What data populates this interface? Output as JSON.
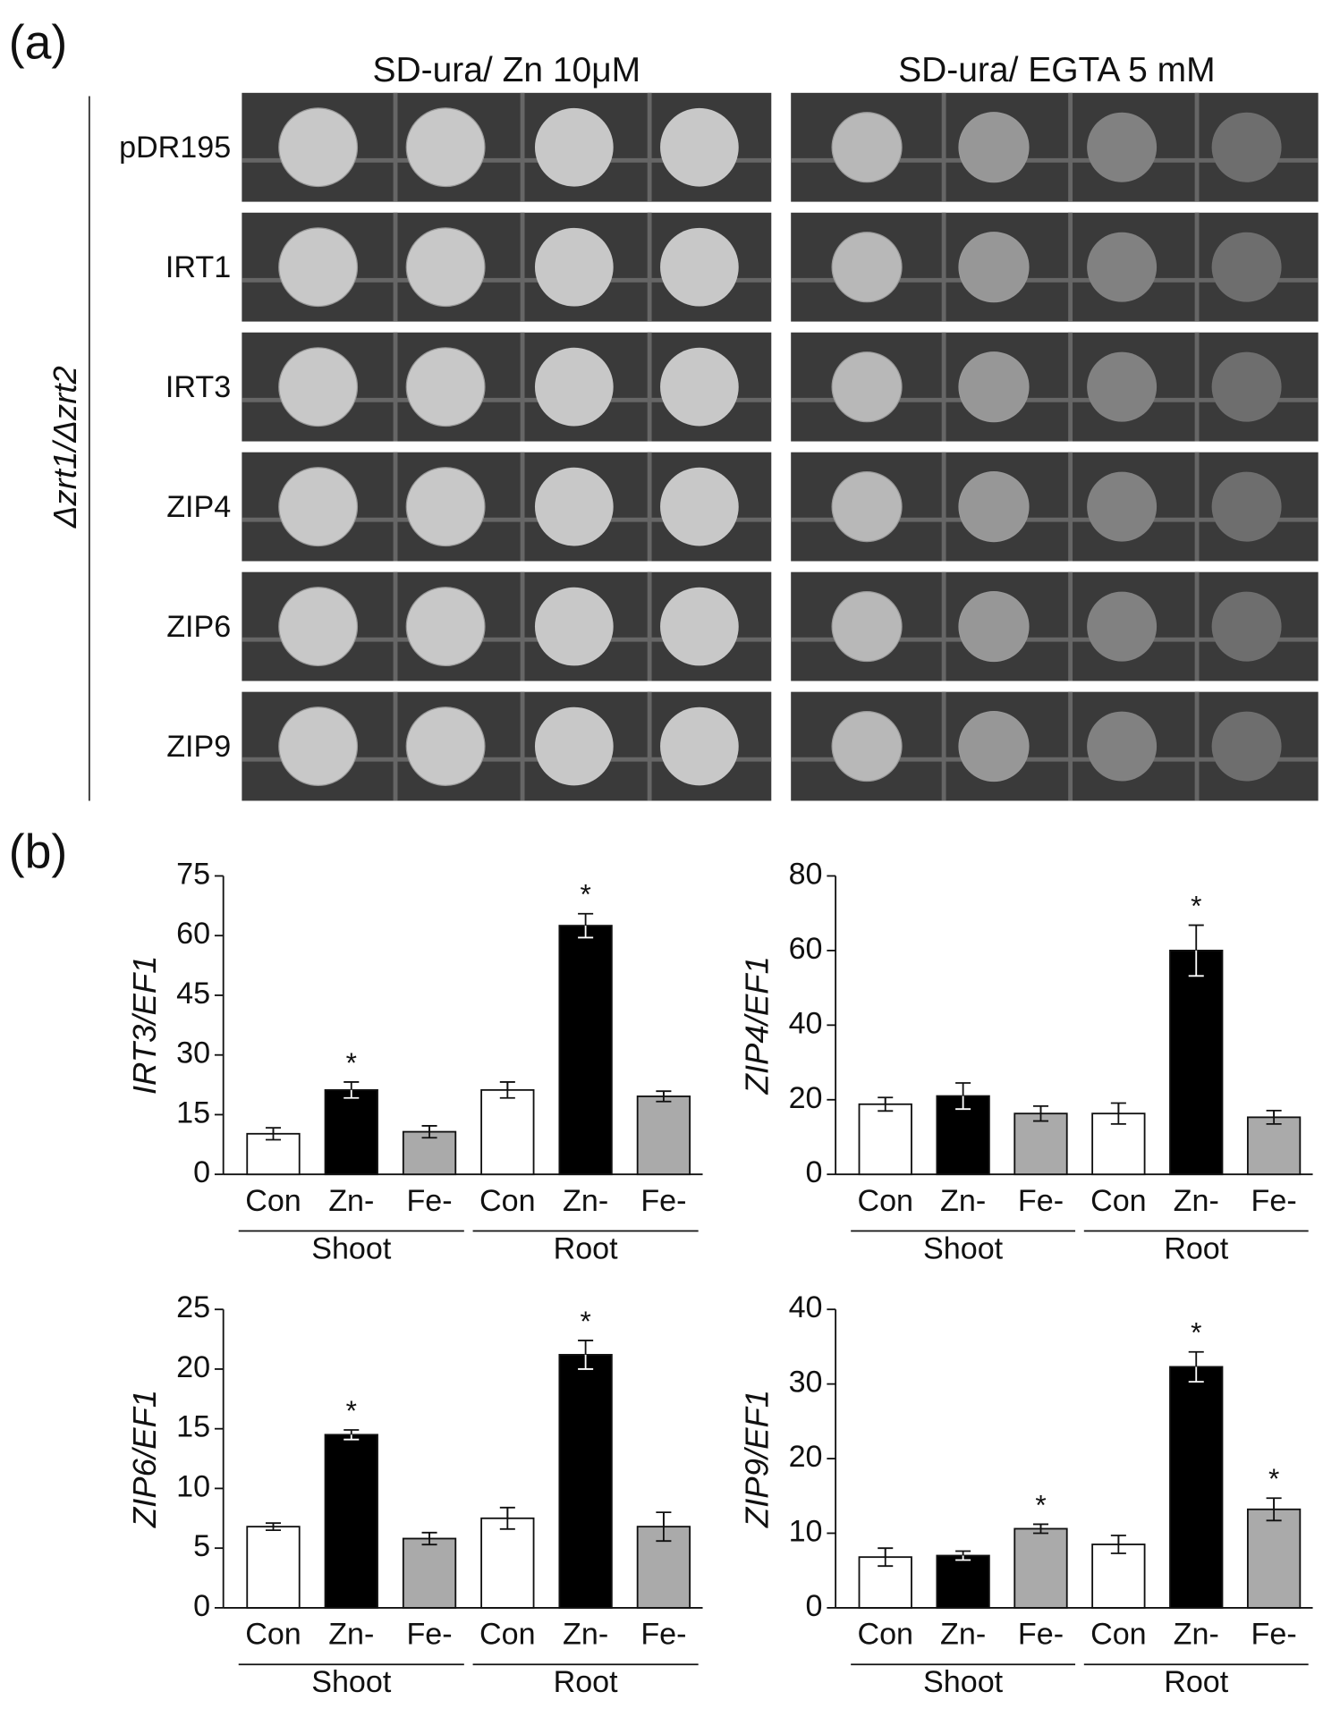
{
  "panel_a": {
    "label": "(a)",
    "conditions": [
      "SD-ura/ Zn 10μM",
      "SD-ura/ EGTA 5 mM"
    ],
    "strain": "Δzrt1/Δzrt2",
    "rows": [
      "pDR195",
      "IRT1",
      "IRT3",
      "ZIP4",
      "ZIP6",
      "ZIP9"
    ]
  },
  "panel_b": {
    "label": "(b)"
  },
  "chart_data": [
    {
      "type": "bar",
      "ylabel": "IRT3/EF1",
      "categories": [
        "Con",
        "Zn-",
        "Fe-",
        "Con",
        "Zn-",
        "Fe-"
      ],
      "groups": [
        "Shoot",
        "Root"
      ],
      "values": [
        10.2,
        21.2,
        10.7,
        21.2,
        62.5,
        19.6
      ],
      "errors": [
        1.5,
        2,
        1.5,
        2,
        3,
        1.3
      ],
      "colors": [
        "#ffffff",
        "#000000",
        "#aaaaaa",
        "#ffffff",
        "#000000",
        "#aaaaaa"
      ],
      "significant": [
        false,
        true,
        false,
        false,
        true,
        false
      ],
      "marker": "*",
      "ylim": [
        0,
        75
      ],
      "yticks": [
        0,
        15,
        30,
        45,
        60,
        75
      ]
    },
    {
      "type": "bar",
      "ylabel": "ZIP4/EF1",
      "categories": [
        "Con",
        "Zn-",
        "Fe-",
        "Con",
        "Zn-",
        "Fe-"
      ],
      "groups": [
        "Shoot",
        "Root"
      ],
      "values": [
        18.8,
        21,
        16.3,
        16.3,
        60,
        15.3
      ],
      "errors": [
        1.8,
        3.5,
        2,
        2.8,
        6.8,
        1.8
      ],
      "colors": [
        "#ffffff",
        "#000000",
        "#aaaaaa",
        "#ffffff",
        "#000000",
        "#aaaaaa"
      ],
      "significant": [
        false,
        false,
        false,
        false,
        true,
        false
      ],
      "marker": "*",
      "ylim": [
        0,
        80
      ],
      "yticks": [
        0,
        20,
        40,
        60,
        80
      ]
    },
    {
      "type": "bar",
      "ylabel": "ZIP6/EF1",
      "categories": [
        "Con",
        "Zn-",
        "Fe-",
        "Con",
        "Zn-",
        "Fe-"
      ],
      "groups": [
        "Shoot",
        "Root"
      ],
      "values": [
        6.8,
        14.5,
        5.8,
        7.5,
        21.2,
        6.8
      ],
      "errors": [
        0.3,
        0.4,
        0.5,
        0.9,
        1.2,
        1.2
      ],
      "colors": [
        "#ffffff",
        "#000000",
        "#aaaaaa",
        "#ffffff",
        "#000000",
        "#aaaaaa"
      ],
      "significant": [
        false,
        true,
        false,
        false,
        true,
        false
      ],
      "marker": "*",
      "ylim": [
        0,
        25
      ],
      "yticks": [
        0,
        5,
        10,
        15,
        20,
        25
      ]
    },
    {
      "type": "bar",
      "ylabel": "ZIP9/EF1",
      "categories": [
        "Con",
        "Zn-",
        "Fe-",
        "Con",
        "Zn-",
        "Fe-"
      ],
      "groups": [
        "Shoot",
        "Root"
      ],
      "values": [
        6.8,
        7,
        10.6,
        8.5,
        32.3,
        13.2
      ],
      "errors": [
        1.2,
        0.6,
        0.6,
        1.2,
        2,
        1.5
      ],
      "colors": [
        "#ffffff",
        "#000000",
        "#aaaaaa",
        "#ffffff",
        "#000000",
        "#aaaaaa"
      ],
      "significant": [
        false,
        false,
        true,
        false,
        true,
        true
      ],
      "marker": "*",
      "ylim": [
        0,
        40
      ],
      "yticks": [
        0,
        10,
        20,
        30,
        40
      ]
    }
  ]
}
